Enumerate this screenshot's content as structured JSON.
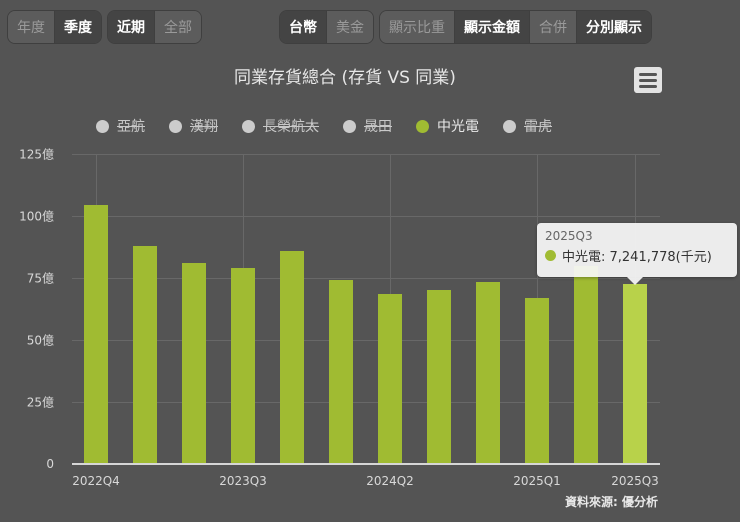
{
  "toolbar": {
    "period_group": [
      {
        "label": "年度",
        "active": false
      },
      {
        "label": "季度",
        "active": true
      }
    ],
    "range_group": [
      {
        "label": "近期",
        "active": true
      },
      {
        "label": "全部",
        "active": false
      }
    ],
    "currency_group": [
      {
        "label": "台幣",
        "active": true
      },
      {
        "label": "美金",
        "active": false
      }
    ],
    "display_group": [
      {
        "label": "顯示比重",
        "active": false
      },
      {
        "label": "顯示金額",
        "active": true
      },
      {
        "label": "合併",
        "active": false
      },
      {
        "label": "分別顯示",
        "active": true
      }
    ]
  },
  "menu_icon": "hamburger-menu-icon",
  "colors": {
    "series": "#a0bb32",
    "hover": "#b8d24a",
    "disabled": "#cccccc",
    "background": "#545454"
  },
  "legend": [
    {
      "label": "亞航",
      "enabled": false
    },
    {
      "label": "漢翔",
      "enabled": false
    },
    {
      "label": "長榮航太",
      "enabled": false
    },
    {
      "label": "晟田",
      "enabled": false
    },
    {
      "label": "中光電",
      "enabled": true
    },
    {
      "label": "雷虎",
      "enabled": false
    }
  ],
  "tooltip": {
    "title": "2025Q3",
    "text": "中光電: 7,241,778(千元)"
  },
  "credit": "資料來源: 優分析",
  "chart_data": {
    "type": "bar",
    "title": "同業存貨總合 (存貨 VS 同業)",
    "xlabel": "",
    "ylabel": "",
    "unit": "億",
    "ylim": [
      0,
      125
    ],
    "yticks": [
      "0",
      "25億",
      "50億",
      "75億",
      "100億",
      "125億"
    ],
    "ytick_values": [
      0,
      25,
      50,
      75,
      100,
      125
    ],
    "grid": true,
    "legend_position": "top",
    "categories": [
      "2022Q4",
      "2023Q1",
      "2023Q2",
      "2023Q3",
      "2023Q4",
      "2024Q1",
      "2024Q2",
      "2024Q3",
      "2024Q4",
      "2025Q1",
      "2025Q2",
      "2025Q3"
    ],
    "xtick_labels": [
      "2022Q4",
      "2023Q3",
      "2024Q2",
      "2025Q1",
      "2025Q3"
    ],
    "xtick_indices": [
      0,
      3,
      6,
      9,
      11
    ],
    "series": [
      {
        "name": "中光電",
        "values": [
          104.4,
          87.9,
          81.1,
          79.2,
          85.7,
          74.3,
          68.5,
          70.3,
          73.3,
          67.0,
          80.0,
          72.4
        ]
      }
    ]
  }
}
